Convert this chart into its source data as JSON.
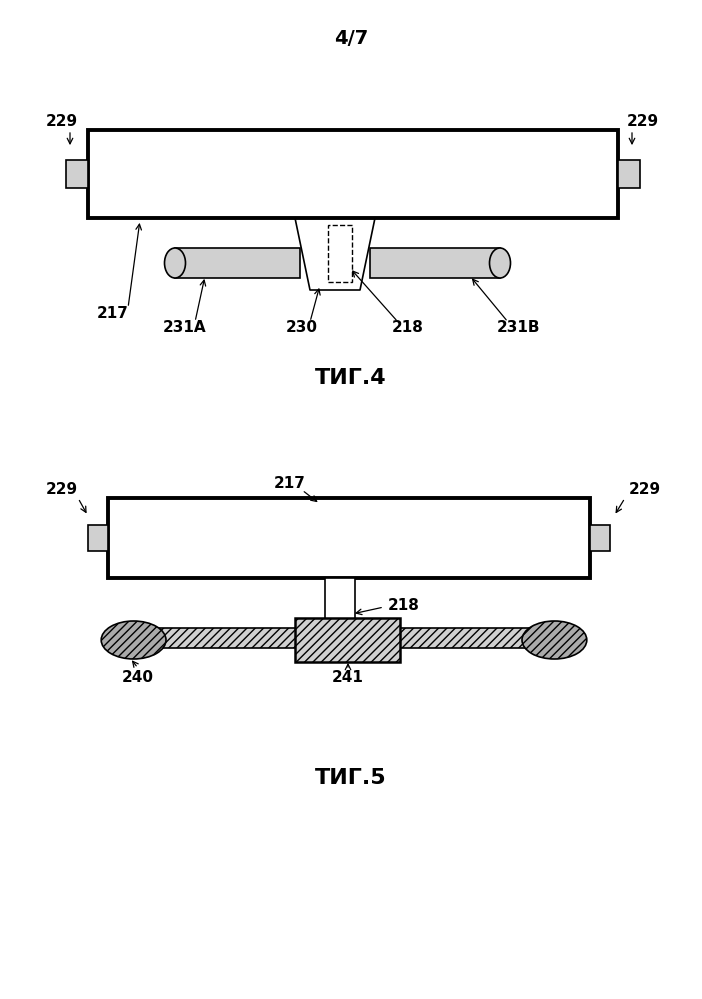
{
  "page_label": "4/7",
  "fig4_label": "ΤИГ.4",
  "fig5_label": "ΤИГ.5",
  "bg_color": "#ffffff",
  "line_color": "#000000",
  "gray_light": "#d0d0d0",
  "gray_med": "#aaaaaa",
  "gray_dark": "#888888",
  "label_fontsize": 11,
  "page_fontsize": 14,
  "fig_label_fontsize": 16
}
